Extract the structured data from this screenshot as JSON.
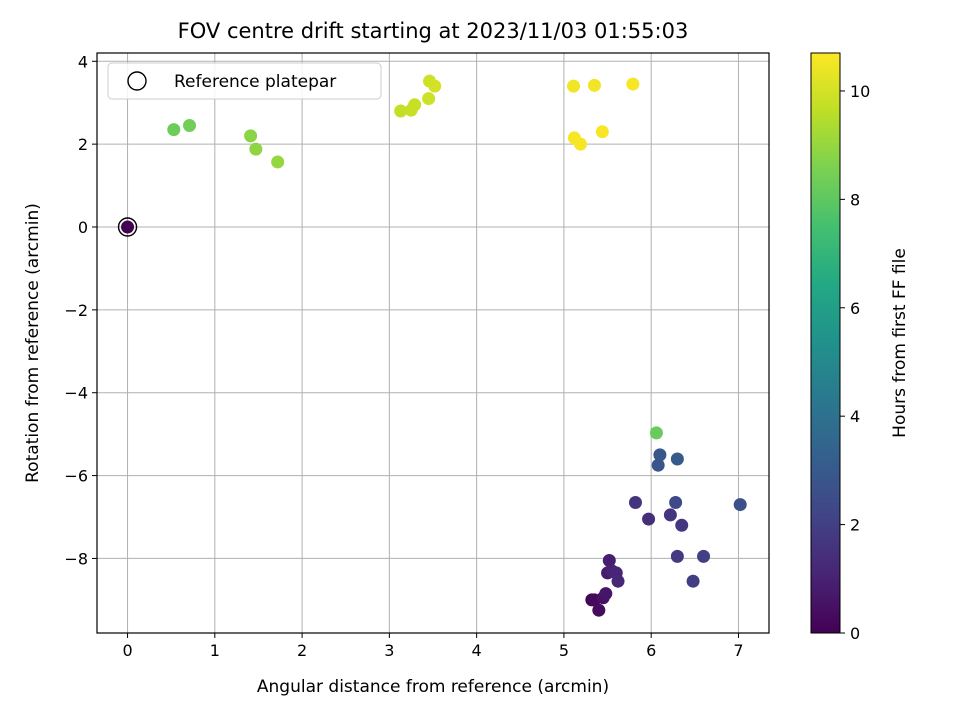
{
  "chart_data": {
    "type": "scatter",
    "title": "FOV centre drift starting at 2023/11/03 01:55:03",
    "xlabel": "Angular distance from reference (arcmin)",
    "ylabel": "Rotation from reference (arcmin)",
    "xlim": [
      -0.35,
      7.35
    ],
    "ylim": [
      -9.8,
      4.2
    ],
    "x_ticks": [
      0,
      1,
      2,
      3,
      4,
      5,
      6,
      7
    ],
    "y_ticks": [
      -8,
      -6,
      -4,
      -2,
      0,
      2,
      4
    ],
    "x_tick_labels": [
      "0",
      "1",
      "2",
      "3",
      "4",
      "5",
      "6",
      "7"
    ],
    "y_tick_labels": [
      "−8",
      "−6",
      "−4",
      "−2",
      "0",
      "2",
      "4"
    ],
    "grid": true,
    "legend": {
      "position": "top-left",
      "entries": [
        "Reference platepar"
      ]
    },
    "colorbar": {
      "label": "Hours from first FF file",
      "colormap": "viridis",
      "range": [
        0,
        10.7
      ],
      "ticks": [
        0,
        2,
        4,
        6,
        8,
        10
      ],
      "tick_labels": [
        "0",
        "2",
        "4",
        "6",
        "8",
        "10"
      ]
    },
    "reference_point": {
      "x": 0,
      "y": 0
    },
    "points": [
      {
        "x": 0.0,
        "y": 0.0,
        "hours": 0.0
      },
      {
        "x": 5.32,
        "y": -9.0,
        "hours": 0.1
      },
      {
        "x": 5.35,
        "y": -9.0,
        "hours": 0.2
      },
      {
        "x": 5.4,
        "y": -9.25,
        "hours": 0.3
      },
      {
        "x": 5.45,
        "y": -8.95,
        "hours": 0.5
      },
      {
        "x": 5.48,
        "y": -8.85,
        "hours": 0.6
      },
      {
        "x": 5.5,
        "y": -8.35,
        "hours": 0.8
      },
      {
        "x": 5.52,
        "y": -8.05,
        "hours": 0.9
      },
      {
        "x": 5.55,
        "y": -8.3,
        "hours": 1.0
      },
      {
        "x": 5.6,
        "y": -8.35,
        "hours": 1.1
      },
      {
        "x": 5.62,
        "y": -8.55,
        "hours": 1.2
      },
      {
        "x": 5.97,
        "y": -7.05,
        "hours": 1.4
      },
      {
        "x": 5.82,
        "y": -6.65,
        "hours": 1.6
      },
      {
        "x": 6.22,
        "y": -6.95,
        "hours": 1.6
      },
      {
        "x": 6.35,
        "y": -7.2,
        "hours": 1.7
      },
      {
        "x": 6.3,
        "y": -7.95,
        "hours": 1.8
      },
      {
        "x": 6.48,
        "y": -8.55,
        "hours": 1.9
      },
      {
        "x": 6.6,
        "y": -7.95,
        "hours": 2.0
      },
      {
        "x": 6.28,
        "y": -6.65,
        "hours": 2.3
      },
      {
        "x": 7.02,
        "y": -6.7,
        "hours": 2.6
      },
      {
        "x": 6.08,
        "y": -5.75,
        "hours": 2.8
      },
      {
        "x": 6.1,
        "y": -5.5,
        "hours": 2.9
      },
      {
        "x": 6.3,
        "y": -5.6,
        "hours": 3.0
      },
      {
        "x": 6.06,
        "y": -4.97,
        "hours": 8.2
      },
      {
        "x": 0.53,
        "y": 2.35,
        "hours": 8.3
      },
      {
        "x": 0.71,
        "y": 2.45,
        "hours": 8.4
      },
      {
        "x": 1.41,
        "y": 2.2,
        "hours": 8.8
      },
      {
        "x": 1.47,
        "y": 1.88,
        "hours": 8.9
      },
      {
        "x": 1.72,
        "y": 1.57,
        "hours": 9.0
      },
      {
        "x": 3.13,
        "y": 2.8,
        "hours": 9.7
      },
      {
        "x": 3.25,
        "y": 2.82,
        "hours": 9.8
      },
      {
        "x": 3.29,
        "y": 2.95,
        "hours": 9.8
      },
      {
        "x": 3.45,
        "y": 3.1,
        "hours": 9.9
      },
      {
        "x": 3.46,
        "y": 3.52,
        "hours": 9.9
      },
      {
        "x": 3.52,
        "y": 3.4,
        "hours": 10.0
      },
      {
        "x": 5.11,
        "y": 3.4,
        "hours": 10.5
      },
      {
        "x": 5.35,
        "y": 3.42,
        "hours": 10.5
      },
      {
        "x": 5.79,
        "y": 3.45,
        "hours": 10.6
      },
      {
        "x": 5.12,
        "y": 2.15,
        "hours": 10.6
      },
      {
        "x": 5.19,
        "y": 2.0,
        "hours": 10.6
      },
      {
        "x": 5.44,
        "y": 2.3,
        "hours": 10.6
      }
    ]
  }
}
